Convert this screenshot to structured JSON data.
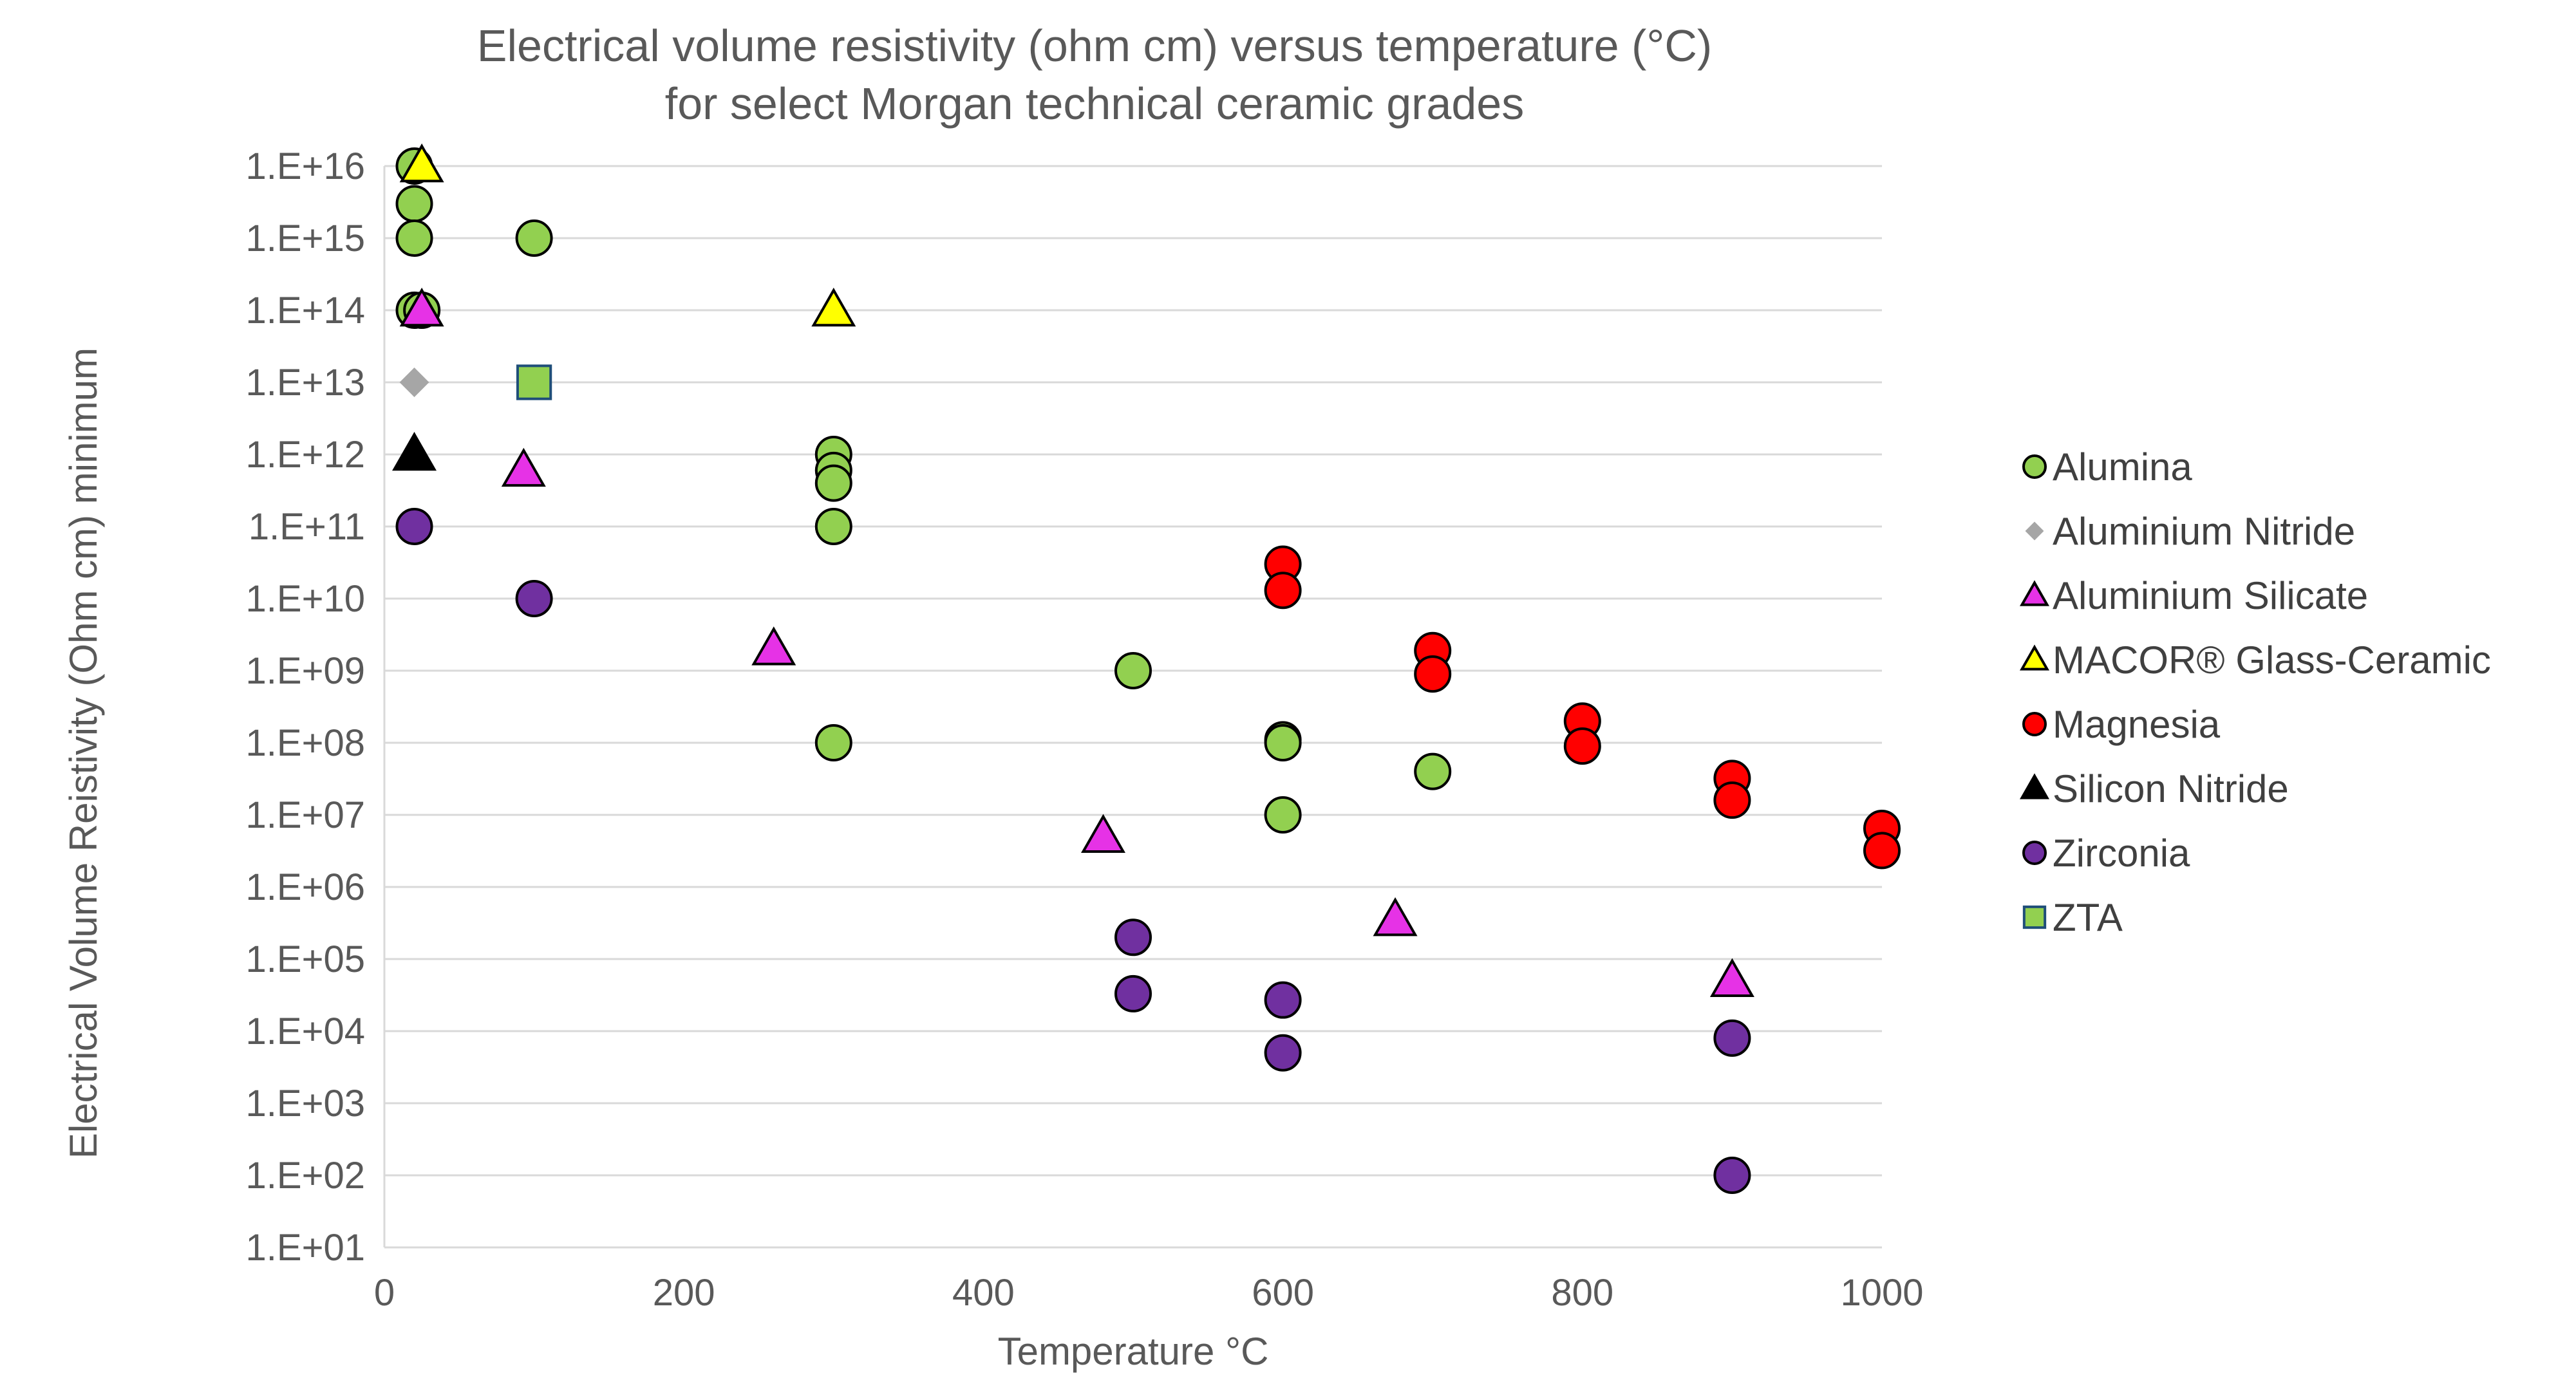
{
  "chart_data": {
    "type": "scatter",
    "title": "Electrical volume resistivity (ohm cm) versus temperature (°C)",
    "subtitle": "for select Morgan technical ceramic grades",
    "xlabel": "Temperature °C",
    "ylabel": "Electrical Volume Reistivity (Ohm cm) minimum",
    "xlim": [
      0,
      1000
    ],
    "ylim_log10": [
      1,
      16
    ],
    "y_scale": "log10",
    "grid": "horizontal",
    "legend_position": "right",
    "x_ticks": [
      {
        "value": 0,
        "label": "0"
      },
      {
        "value": 200,
        "label": "200"
      },
      {
        "value": 400,
        "label": "400"
      },
      {
        "value": 600,
        "label": "600"
      },
      {
        "value": 800,
        "label": "800"
      },
      {
        "value": 1000,
        "label": "1000"
      }
    ],
    "y_ticks": [
      {
        "exp": 16,
        "label": "1.E+16"
      },
      {
        "exp": 15,
        "label": "1.E+15"
      },
      {
        "exp": 14,
        "label": "1.E+14"
      },
      {
        "exp": 13,
        "label": "1.E+13"
      },
      {
        "exp": 12,
        "label": "1.E+12"
      },
      {
        "exp": 11,
        "label": "1.E+11"
      },
      {
        "exp": 10,
        "label": "1.E+10"
      },
      {
        "exp": 9,
        "label": "1.E+09"
      },
      {
        "exp": 8,
        "label": "1.E+08"
      },
      {
        "exp": 7,
        "label": "1.E+07"
      },
      {
        "exp": 6,
        "label": "1.E+06"
      },
      {
        "exp": 5,
        "label": "1.E+05"
      },
      {
        "exp": 4,
        "label": "1.E+04"
      },
      {
        "exp": 3,
        "label": "1.E+03"
      },
      {
        "exp": 2,
        "label": "1.E+02"
      },
      {
        "exp": 1,
        "label": "1.E+01"
      }
    ],
    "series": [
      {
        "name": "Alumina",
        "marker": "circle",
        "fill": "#92d050",
        "stroke": "#000000",
        "points": [
          [
            20,
            1e+16
          ],
          [
            20,
            3000000000000000.0
          ],
          [
            20,
            1000000000000000.0
          ],
          [
            100,
            1000000000000000.0
          ],
          [
            20,
            100000000000000.0
          ],
          [
            25,
            100000000000000.0
          ],
          [
            300,
            1000000000000.0
          ],
          [
            300,
            600000000000.0
          ],
          [
            300,
            400000000000.0
          ],
          [
            300,
            100000000000.0
          ],
          [
            300,
            100000000.0
          ],
          [
            500,
            1000000000.0
          ],
          [
            600,
            110000000.0
          ],
          [
            600,
            100000000.0
          ],
          [
            600,
            10000000.0
          ],
          [
            700,
            40000000.0
          ]
        ]
      },
      {
        "name": "Aluminium Nitride",
        "marker": "diamond",
        "fill": "#a6a6a6",
        "stroke": "none",
        "points": [
          [
            20,
            10000000000000.0
          ]
        ]
      },
      {
        "name": "Aluminium Silicate",
        "marker": "triangle",
        "fill": "#e632e6",
        "stroke": "#000000",
        "points": [
          [
            25,
            100000000000000.0
          ],
          [
            93,
            600000000000.0
          ],
          [
            260,
            2000000000.0
          ],
          [
            480,
            5000000.0
          ],
          [
            675,
            350000.0
          ],
          [
            900,
            50000.0
          ]
        ]
      },
      {
        "name": "MACOR® Glass-Ceramic",
        "marker": "triangle",
        "fill": "#ffff00",
        "stroke": "#000000",
        "points": [
          [
            25,
            1e+16
          ],
          [
            300,
            100000000000000.0
          ]
        ]
      },
      {
        "name": "Magnesia",
        "marker": "circle",
        "fill": "#ff0000",
        "stroke": "#000000",
        "points": [
          [
            600,
            30000000000.0
          ],
          [
            600,
            13000000000.0
          ],
          [
            700,
            1900000000.0
          ],
          [
            700,
            900000000.0
          ],
          [
            800,
            200000000.0
          ],
          [
            800,
            90000000.0
          ],
          [
            900,
            32000000.0
          ],
          [
            900,
            16000000.0
          ],
          [
            1000,
            6500000.0
          ],
          [
            1000,
            3200000.0
          ]
        ]
      },
      {
        "name": "Silicon Nitride",
        "marker": "triangle",
        "fill": "#000000",
        "stroke": "#000000",
        "points": [
          [
            20,
            1000000000000.0
          ]
        ]
      },
      {
        "name": "Zirconia",
        "marker": "circle",
        "fill": "#7030a0",
        "stroke": "#000000",
        "points": [
          [
            20,
            100000000000.0
          ],
          [
            100,
            10000000000.0
          ],
          [
            500,
            200000.0
          ],
          [
            500,
            33000.0
          ],
          [
            600,
            27000.0
          ],
          [
            600,
            5000.0
          ],
          [
            900,
            8000.0
          ],
          [
            900,
            100
          ]
        ]
      },
      {
        "name": "ZTA",
        "marker": "square",
        "fill": "#92d050",
        "stroke": "#1f4e79",
        "points": [
          [
            100,
            10000000000000.0
          ]
        ]
      }
    ]
  }
}
